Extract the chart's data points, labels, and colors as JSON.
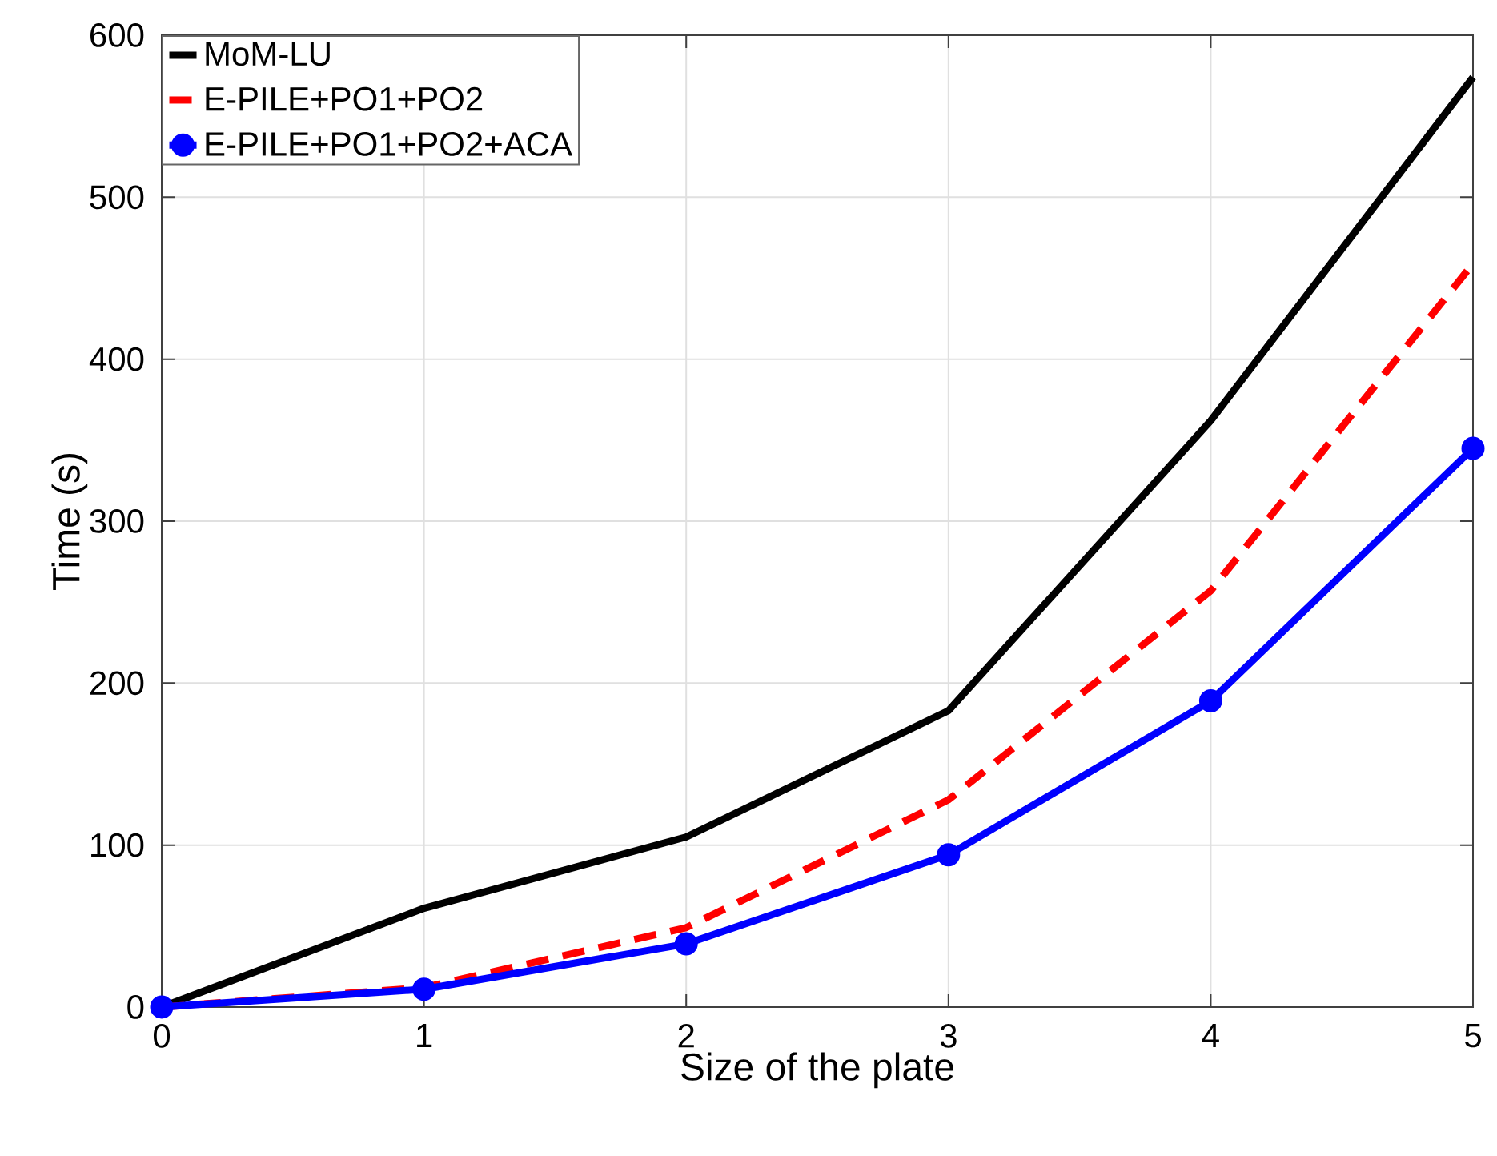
{
  "chart_data": {
    "type": "line",
    "xlabel": "Size of the plate",
    "ylabel": "Time (s)",
    "x": [
      0,
      1,
      2,
      3,
      4,
      5
    ],
    "xlim": [
      0,
      5
    ],
    "xticks": [
      0,
      1,
      2,
      3,
      4,
      5
    ],
    "ylim": [
      0,
      600
    ],
    "yticks": [
      0,
      100,
      200,
      300,
      400,
      500,
      600
    ],
    "grid": true,
    "legend": "top left",
    "series": [
      {
        "name": "MoM-LU",
        "color": "#000000",
        "line_style": "solid",
        "marker": "none",
        "values": [
          0,
          61,
          105,
          183,
          362,
          574
        ]
      },
      {
        "name": "E-PILE+PO1+PO2",
        "color": "#ff0000",
        "line_style": "dashed",
        "marker": "none",
        "values": [
          0,
          12,
          49,
          128,
          257,
          459
        ]
      },
      {
        "name": "E-PILE+PO1+PO2+ACA",
        "color": "#0000ff",
        "line_style": "solid",
        "marker": "circle",
        "values": [
          0,
          11,
          39,
          94,
          189,
          345
        ]
      }
    ]
  }
}
